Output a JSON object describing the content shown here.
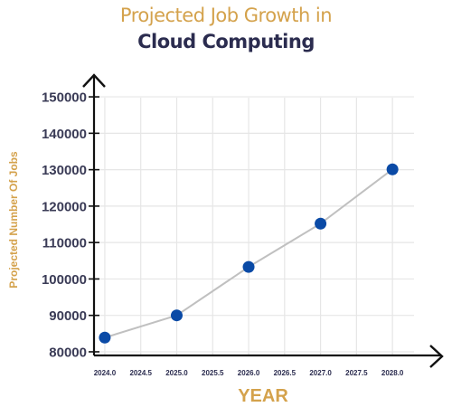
{
  "title_line1": "Projected Job Growth in",
  "title_line2": "Cloud Computing",
  "colors": {
    "title_accent": "#d4a24c",
    "title_dark": "#2b2c4f",
    "point": "#0a4aa6",
    "line": "#c0c0c0",
    "grid": "#e6e6e6"
  },
  "chart_data": {
    "type": "line",
    "title": "Projected Job Growth in Cloud Computing",
    "xlabel": "YEAR",
    "ylabel": "Projected Number Of Jobs",
    "x": [
      2024.0,
      2025.0,
      2026.0,
      2027.0,
      2028.0
    ],
    "series": [
      {
        "values": [
          83900,
          90000,
          103300,
          115200,
          130100
        ]
      }
    ],
    "x_ticks": [
      "2024.0",
      "2024.5",
      "2025.0",
      "2025.5",
      "2026.0",
      "2026.5",
      "2027.0",
      "2027.5",
      "2028.0"
    ],
    "y_ticks": [
      "80000",
      "90000",
      "100000",
      "110000",
      "120000",
      "130000",
      "140000",
      "150000"
    ],
    "xlim": [
      2023.85,
      2028.3
    ],
    "ylim": [
      79000,
      153000
    ],
    "grid": true,
    "legend": "none"
  }
}
